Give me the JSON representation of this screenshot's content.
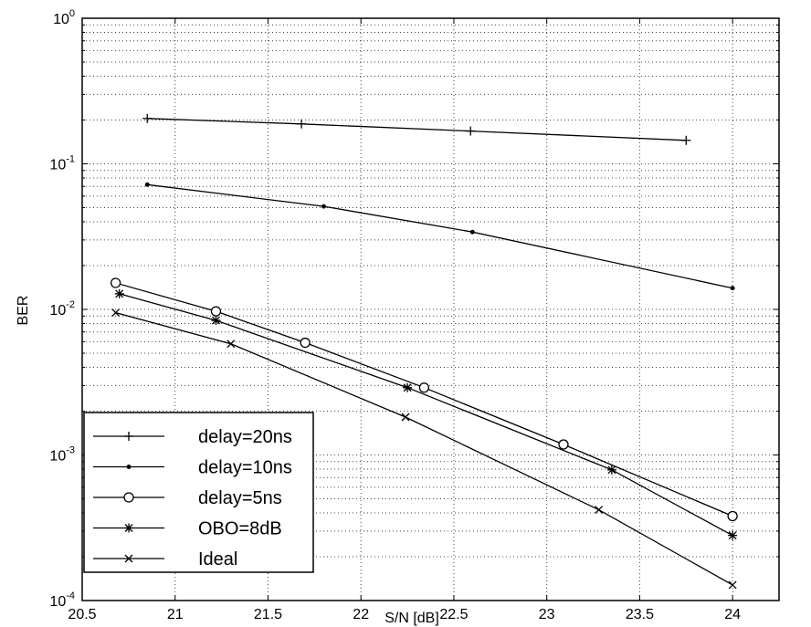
{
  "chart_data": {
    "type": "line",
    "xlabel": "S/N [dB]",
    "ylabel": "BER",
    "xlim": [
      20.5,
      24.25
    ],
    "ylim": [
      0.0001,
      1
    ],
    "yscale": "log",
    "grid": "on (major and minor, dotted)",
    "legend_position": "bottom-left",
    "x_ticks": [
      "20.5",
      "21",
      "21.5",
      "22",
      "22.5",
      "23",
      "23.5",
      "24"
    ],
    "y_ticks": [
      {
        "base": "10",
        "exp": "-4"
      },
      {
        "base": "10",
        "exp": "-3"
      },
      {
        "base": "10",
        "exp": "-2"
      },
      {
        "base": "10",
        "exp": "-1"
      },
      {
        "base": "10",
        "exp": "0"
      }
    ],
    "series": [
      {
        "name": "delay=20ns",
        "marker": "plus",
        "x": [
          20.85,
          21.68,
          22.59,
          23.75
        ],
        "y": [
          0.205,
          0.188,
          0.168,
          0.145
        ]
      },
      {
        "name": "delay=10ns",
        "marker": "dot",
        "x": [
          20.85,
          21.8,
          22.6,
          24.0
        ],
        "y": [
          0.072,
          0.051,
          0.034,
          0.014
        ]
      },
      {
        "name": "delay=5ns",
        "marker": "circle",
        "x": [
          20.68,
          21.22,
          21.7,
          22.34,
          23.09,
          24.0
        ],
        "y": [
          0.0152,
          0.0097,
          0.0059,
          0.0029,
          0.00118,
          0.00038
        ]
      },
      {
        "name": "OBO=8dB",
        "marker": "star",
        "x": [
          20.7,
          21.22,
          22.25,
          23.35,
          24.0
        ],
        "y": [
          0.0128,
          0.0084,
          0.0029,
          0.00079,
          0.00028
        ]
      },
      {
        "name": "Ideal",
        "marker": "x",
        "x": [
          20.68,
          21.3,
          22.24,
          23.28,
          24.0
        ],
        "y": [
          0.0095,
          0.0058,
          0.00182,
          0.00042,
          0.000128
        ]
      }
    ]
  }
}
